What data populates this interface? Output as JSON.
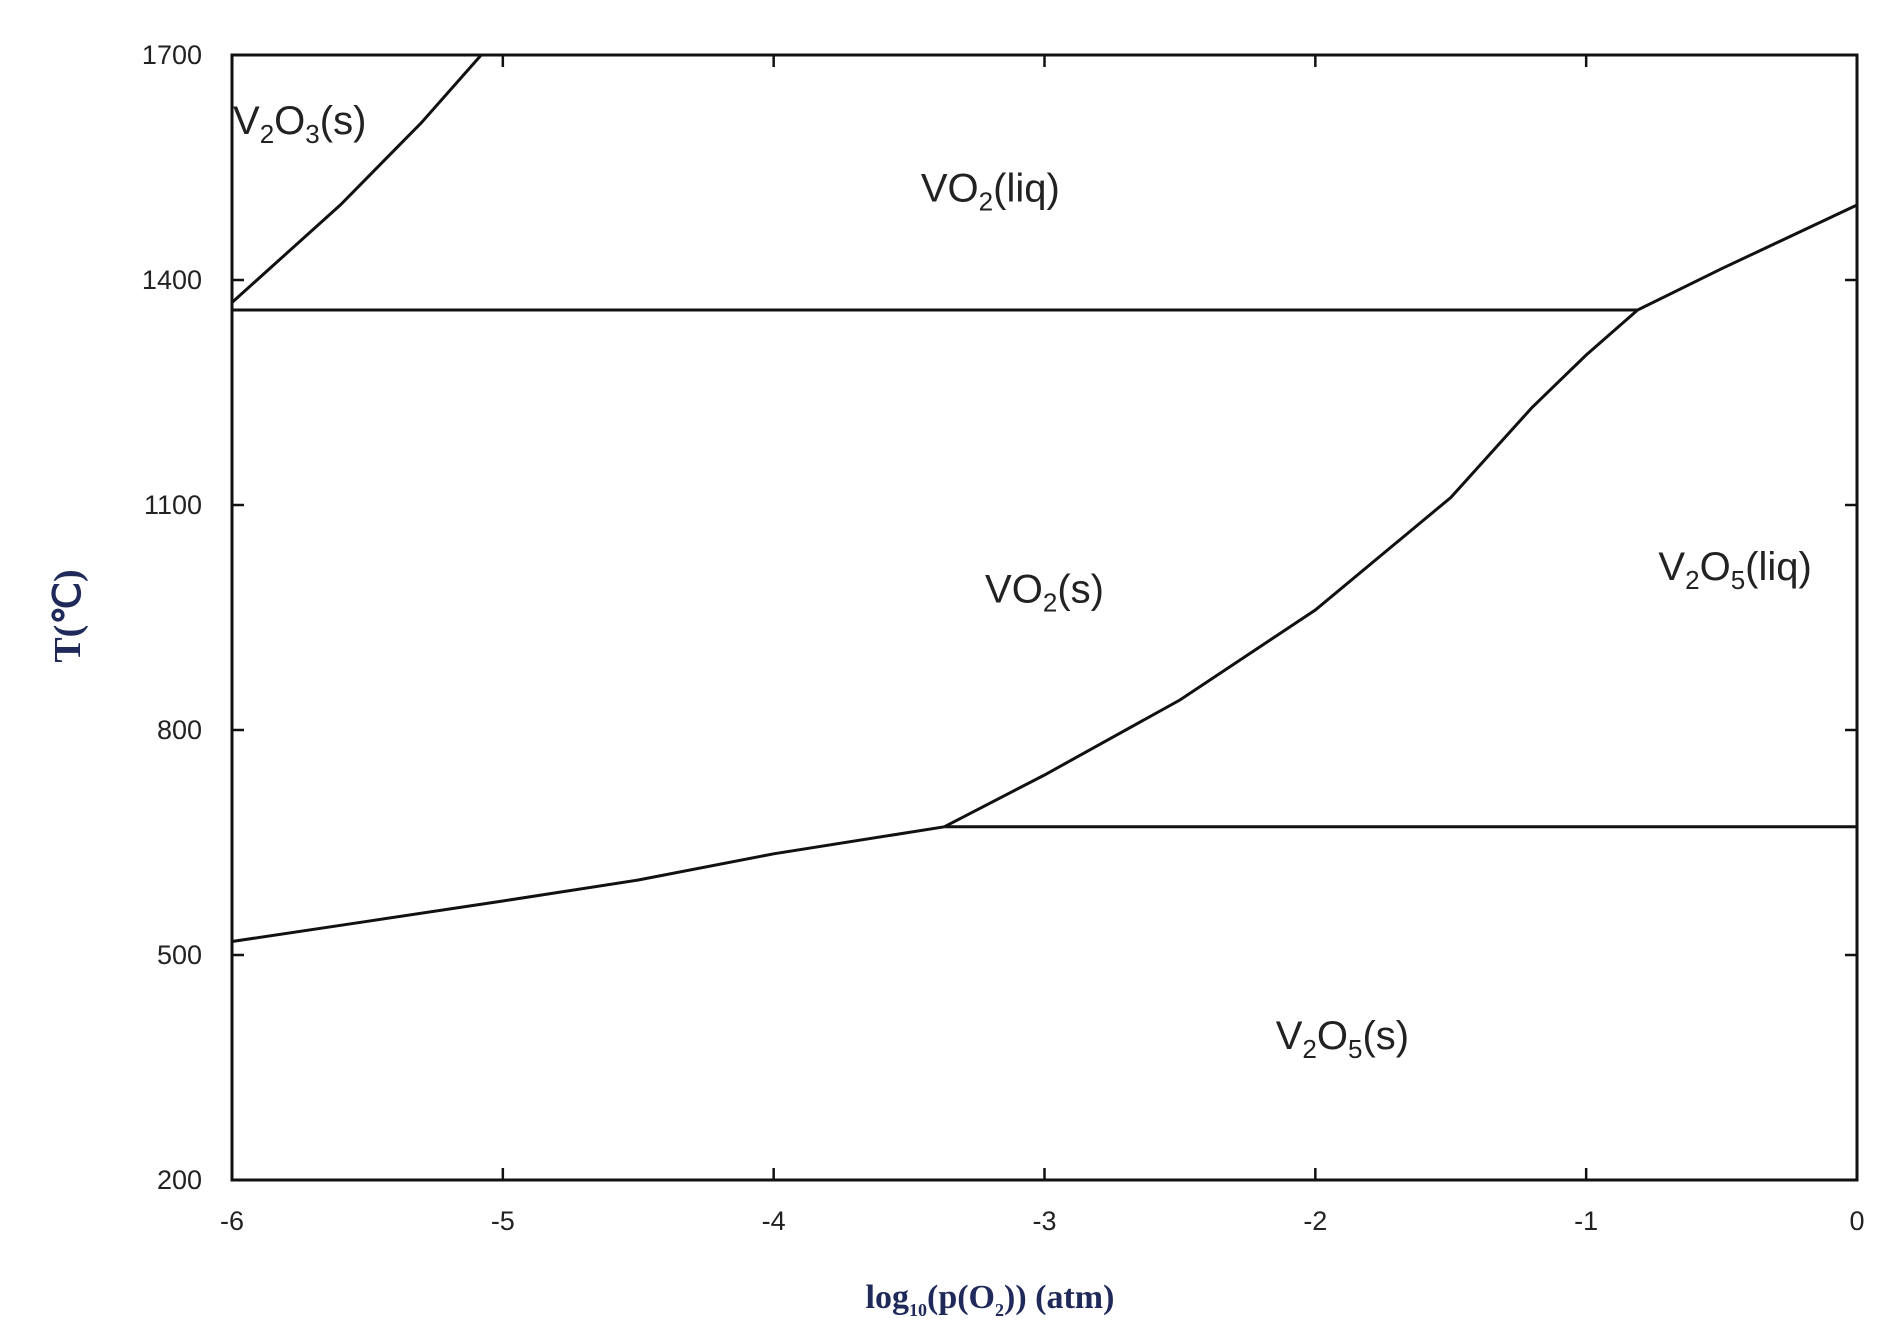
{
  "chart_data": {
    "type": "line",
    "xlabel": {
      "main": "log",
      "sub": "10",
      "rest": "(p(O",
      "sub2": "2",
      "end": ")) (atm)"
    },
    "ylabel": "T(℃)",
    "xlim": [
      -6,
      0
    ],
    "ylim": [
      200,
      1700
    ],
    "xticks": [
      "-6",
      "-5",
      "-4",
      "-3",
      "-2",
      "-1",
      "0"
    ],
    "yticks": [
      "200",
      "500",
      "800",
      "1100",
      "1400",
      "1700"
    ],
    "grid": false,
    "phase_boundaries": [
      {
        "id": "v2o3-vo2liq",
        "points": [
          [
            -6,
            1370
          ],
          [
            -5.6,
            1500
          ],
          [
            -5.3,
            1610
          ],
          [
            -5.08,
            1700
          ]
        ]
      },
      {
        "id": "vo2liq-vo2s",
        "points": [
          [
            -6,
            1360
          ],
          [
            -0.81,
            1360
          ]
        ]
      },
      {
        "id": "vo2liq-v2o5liq",
        "points": [
          [
            -0.81,
            1360
          ],
          [
            -0.5,
            1415
          ],
          [
            0,
            1500
          ]
        ]
      },
      {
        "id": "vo2s-v2o5liq",
        "points": [
          [
            -3.37,
            671
          ],
          [
            -3.0,
            740
          ],
          [
            -2.5,
            840
          ],
          [
            -2.0,
            960
          ],
          [
            -1.5,
            1110
          ],
          [
            -1.2,
            1230
          ],
          [
            -1.0,
            1300
          ],
          [
            -0.81,
            1360
          ]
        ]
      },
      {
        "id": "vo2s-v2o5s",
        "points": [
          [
            -6,
            518
          ],
          [
            -5.5,
            545
          ],
          [
            -5.0,
            572
          ],
          [
            -4.5,
            600
          ],
          [
            -4.0,
            635
          ],
          [
            -3.37,
            671
          ]
        ]
      },
      {
        "id": "v2o5s-v2o5liq",
        "points": [
          [
            -3.37,
            671
          ],
          [
            0,
            671
          ]
        ]
      }
    ],
    "regions": [
      {
        "base": "V",
        "sub1": "2",
        "mid": "O",
        "sub2": "3",
        "tail": "(s)",
        "x": -5.75,
        "y": 1595
      },
      {
        "base": "VO",
        "sub1": "2",
        "mid": "",
        "sub2": "",
        "tail": "(liq)",
        "x": -3.2,
        "y": 1505
      },
      {
        "base": "VO",
        "sub1": "2",
        "mid": "",
        "sub2": "",
        "tail": "(s)",
        "x": -3.0,
        "y": 970
      },
      {
        "base": "V",
        "sub1": "2",
        "mid": "O",
        "sub2": "5",
        "tail": "(liq)",
        "x": -0.45,
        "y": 1000
      },
      {
        "base": "V",
        "sub1": "2",
        "mid": "O",
        "sub2": "5",
        "tail": "(s)",
        "x": -1.9,
        "y": 375
      }
    ]
  }
}
